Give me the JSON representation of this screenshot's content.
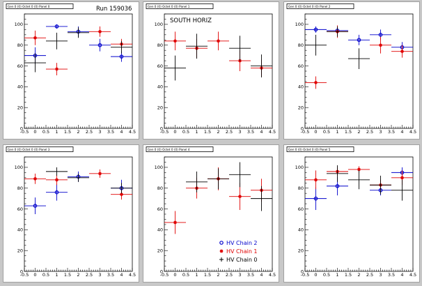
{
  "colors": {
    "chain2": "#0000cc",
    "chain1": "#e00000",
    "chain0": "#000000"
  },
  "chart_data": [
    {
      "type": "scatter",
      "title": "Gen 0 (0) Octet 0 (0) Panel 0",
      "annotation": "Run 159036",
      "xlim": [
        -0.5,
        4.5
      ],
      "ylim": [
        0,
        110
      ],
      "xticks": [
        "-0.5",
        "0",
        "0.5",
        "1",
        "1.5",
        "2",
        "2.5",
        "3",
        "3.5",
        "4",
        "4.5"
      ],
      "yticks": [
        "0",
        "20",
        "40",
        "60",
        "80",
        "100"
      ],
      "series": [
        {
          "name": "HV Chain 2",
          "x": [
            0,
            1,
            2,
            3,
            4
          ],
          "y": [
            70,
            98,
            93,
            80,
            69
          ],
          "err": [
            8,
            2,
            5,
            6,
            5
          ],
          "xerr": [
            0.5,
            0.5,
            0.5,
            0.5,
            0.5
          ],
          "marker": "circle"
        },
        {
          "name": "HV Chain 1",
          "x": [
            0,
            1,
            3,
            4
          ],
          "y": [
            87,
            57,
            93,
            81
          ],
          "err": [
            7,
            6,
            5,
            5
          ],
          "xerr": [
            0.5,
            0.5,
            0.5,
            0.5
          ],
          "marker": "star"
        },
        {
          "name": "HV Chain 0",
          "x": [
            0,
            1,
            2,
            4
          ],
          "y": [
            63,
            84,
            92,
            78
          ],
          "err": [
            9,
            8,
            5,
            6
          ],
          "xerr": [
            0.5,
            0.5,
            0.5,
            0.5
          ],
          "marker": "cross"
        }
      ]
    },
    {
      "type": "scatter",
      "title": "Gen 0 (0) Octet 0 (0) Panel 1",
      "annotation": "SOUTH HORIZ",
      "xlim": [
        -0.5,
        4.5
      ],
      "ylim": [
        0,
        110
      ],
      "xticks": [
        "-0.5",
        "0",
        "0.5",
        "1",
        "1.5",
        "2",
        "2.5",
        "3",
        "3.5",
        "4",
        "4.5"
      ],
      "yticks": [
        "0",
        "20",
        "40",
        "60",
        "80",
        "100"
      ],
      "series": [
        {
          "name": "HV Chain 1",
          "x": [
            0,
            1,
            2,
            3,
            4
          ],
          "y": [
            84,
            77,
            84,
            65,
            58
          ],
          "err": [
            9,
            9,
            9,
            10,
            8
          ],
          "xerr": [
            0.5,
            0.5,
            0.5,
            0.5,
            0.5
          ],
          "marker": "star"
        },
        {
          "name": "HV Chain 0",
          "x": [
            0,
            1,
            3,
            4
          ],
          "y": [
            58,
            79,
            77,
            60
          ],
          "err": [
            12,
            12,
            12,
            11
          ],
          "xerr": [
            0.5,
            0.5,
            0.5,
            0.5
          ],
          "marker": "cross"
        }
      ]
    },
    {
      "type": "scatter",
      "title": "Gen 0 (0) Octet 0 (0) Panel 2",
      "annotation": "",
      "xlim": [
        -0.5,
        4.5
      ],
      "ylim": [
        0,
        110
      ],
      "xticks": [
        "-0.5",
        "0",
        "0.5",
        "1",
        "1.5",
        "2",
        "2.5",
        "3",
        "3.5",
        "4",
        "4.5"
      ],
      "yticks": [
        "0",
        "20",
        "40",
        "60",
        "80",
        "100"
      ],
      "series": [
        {
          "name": "HV Chain 2",
          "x": [
            0,
            1,
            2,
            3,
            4
          ],
          "y": [
            95,
            94,
            85,
            90,
            78
          ],
          "err": [
            3,
            3,
            5,
            5,
            5
          ],
          "xerr": [
            0.5,
            0.5,
            0.5,
            0.5,
            0.5
          ],
          "marker": "circle"
        },
        {
          "name": "HV Chain 1",
          "x": [
            0,
            1,
            3,
            4
          ],
          "y": [
            44,
            93,
            80,
            74
          ],
          "err": [
            6,
            6,
            8,
            6
          ],
          "xerr": [
            0.5,
            0.5,
            0.5,
            0.5
          ],
          "marker": "star"
        },
        {
          "name": "HV Chain 0",
          "x": [
            0,
            1,
            2
          ],
          "y": [
            80,
            93,
            67
          ],
          "err": [
            10,
            5,
            10
          ],
          "xerr": [
            0.5,
            0.5,
            0.5
          ],
          "marker": "cross"
        }
      ]
    },
    {
      "type": "scatter",
      "title": "Gen 0 (0) Octet 0 (0) Panel 3",
      "annotation": "",
      "xlim": [
        -0.5,
        4.5
      ],
      "ylim": [
        0,
        110
      ],
      "xticks": [
        "-0.5",
        "0",
        "0.5",
        "1",
        "1.5",
        "2",
        "2.5",
        "3",
        "3.5",
        "4",
        "4.5"
      ],
      "yticks": [
        "0",
        "20",
        "40",
        "60",
        "80",
        "100"
      ],
      "series": [
        {
          "name": "HV Chain 2",
          "x": [
            0,
            1,
            2,
            4
          ],
          "y": [
            63,
            76,
            91,
            80
          ],
          "err": [
            8,
            8,
            5,
            8
          ],
          "xerr": [
            0.5,
            0.5,
            0.5,
            0.5
          ],
          "marker": "circle"
        },
        {
          "name": "HV Chain 1",
          "x": [
            0,
            1,
            3,
            4
          ],
          "y": [
            89,
            88,
            94,
            74
          ],
          "err": [
            5,
            5,
            4,
            5
          ],
          "xerr": [
            0.5,
            0.5,
            0.5,
            0.5
          ],
          "marker": "star"
        },
        {
          "name": "HV Chain 0",
          "x": [
            1,
            2,
            4
          ],
          "y": [
            96,
            90,
            80
          ],
          "err": [
            4,
            4,
            5
          ],
          "xerr": [
            0.5,
            0.5,
            0.5
          ],
          "marker": "cross"
        }
      ]
    },
    {
      "type": "scatter",
      "title": "Gen 0 (0) Octet 0 (0) Panel 4",
      "annotation": "",
      "xlim": [
        -0.5,
        4.5
      ],
      "ylim": [
        0,
        110
      ],
      "xticks": [
        "-0.5",
        "0",
        "0.5",
        "1",
        "1.5",
        "2",
        "2.5",
        "3",
        "3.5",
        "4",
        "4.5"
      ],
      "yticks": [
        "0",
        "20",
        "40",
        "60",
        "80",
        "100"
      ],
      "legend": [
        {
          "label": "HV Chain 2",
          "series": "chain2",
          "marker": "circle"
        },
        {
          "label": "HV Chain 1",
          "series": "chain1",
          "marker": "star"
        },
        {
          "label": "HV Chain 0",
          "series": "chain0",
          "marker": "cross"
        }
      ],
      "series": [
        {
          "name": "HV Chain 1",
          "x": [
            0,
            1,
            2,
            3,
            4
          ],
          "y": [
            47,
            80,
            89,
            72,
            78
          ],
          "err": [
            11,
            10,
            11,
            13,
            11
          ],
          "xerr": [
            0.5,
            0.5,
            0.5,
            0.5,
            0.5
          ],
          "marker": "star"
        },
        {
          "name": "HV Chain 0",
          "x": [
            1,
            2,
            3,
            4
          ],
          "y": [
            86,
            89,
            93,
            70
          ],
          "err": [
            10,
            10,
            12,
            12
          ],
          "xerr": [
            0.5,
            0.5,
            0.5,
            0.5
          ],
          "marker": "cross"
        }
      ]
    },
    {
      "type": "scatter",
      "title": "Gen 0 (0) Octet 0 (0) Panel 5",
      "annotation": "",
      "xlim": [
        -0.5,
        4.5
      ],
      "ylim": [
        0,
        110
      ],
      "xticks": [
        "-0.5",
        "0",
        "0.5",
        "1",
        "1.5",
        "2",
        "2.5",
        "3",
        "3.5",
        "4",
        "4.5"
      ],
      "yticks": [
        "0",
        "20",
        "40",
        "60",
        "80",
        "100"
      ],
      "series": [
        {
          "name": "HV Chain 2",
          "x": [
            0,
            1,
            3,
            4
          ],
          "y": [
            70,
            82,
            78,
            95
          ],
          "err": [
            11,
            9,
            5,
            5
          ],
          "xerr": [
            0.5,
            0.5,
            0.5,
            0.5
          ],
          "marker": "circle"
        },
        {
          "name": "HV Chain 1",
          "x": [
            0,
            1,
            2,
            3,
            4
          ],
          "y": [
            88,
            96,
            98,
            83,
            90
          ],
          "err": [
            9,
            4,
            3,
            5,
            7
          ],
          "xerr": [
            0.5,
            0.5,
            0.5,
            0.5,
            0.5
          ],
          "marker": "star"
        },
        {
          "name": "HV Chain 0",
          "x": [
            1,
            2,
            3,
            4
          ],
          "y": [
            94,
            88,
            83,
            78
          ],
          "err": [
            8,
            9,
            9,
            10
          ],
          "xerr": [
            0.5,
            0.5,
            0.5,
            0.5
          ],
          "marker": "cross"
        }
      ]
    }
  ]
}
